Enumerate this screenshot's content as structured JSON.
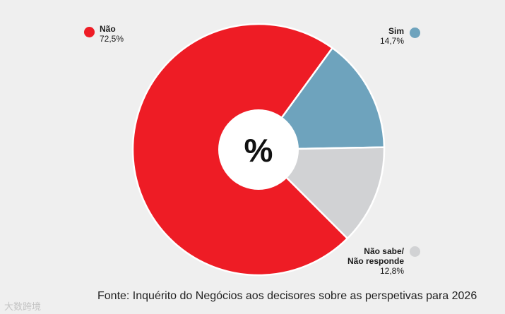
{
  "chart_data": {
    "type": "pie",
    "title": "",
    "center_label": "%",
    "slices": [
      {
        "name": "Não",
        "value": 72.5,
        "value_label": "72,5%",
        "color": "#ee1c25"
      },
      {
        "name": "Sim",
        "value": 14.7,
        "value_label": "14,7%",
        "color": "#6ea3bd"
      },
      {
        "name": "Não sabe/ Não responde",
        "name_line1": "Não sabe/",
        "name_line2": "Não responde",
        "value": 12.8,
        "value_label": "12,8%",
        "color": "#d1d2d4"
      }
    ],
    "donut": true,
    "legend": "around-chart"
  },
  "source": "Fonte: Inquérito do Negócios aos decisores sobre as perspetivas para 2026",
  "watermark": "大数跨境"
}
